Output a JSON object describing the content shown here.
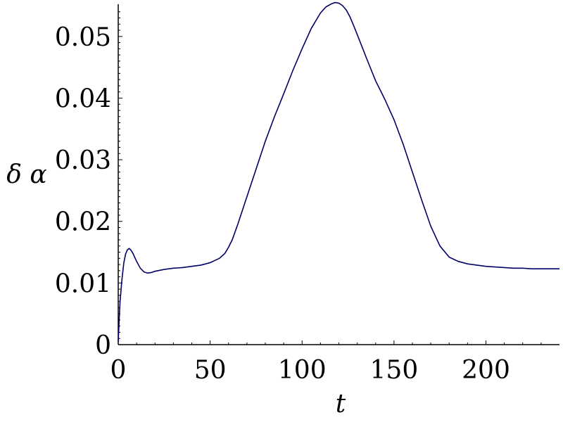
{
  "chart_data": {
    "type": "line",
    "title": "",
    "xlabel": "t",
    "ylabel": "δ α",
    "xlim": [
      0,
      240
    ],
    "ylim": [
      0,
      0.055
    ],
    "grid": false,
    "xticks": [
      0,
      50,
      100,
      150,
      200
    ],
    "xtick_labels": [
      "0",
      "50",
      "100",
      "150",
      "200"
    ],
    "yticks": [
      0,
      0.01,
      0.02,
      0.03,
      0.04,
      0.05
    ],
    "ytick_labels": [
      "0",
      "0.01",
      "0.02",
      "0.03",
      "0.04",
      "0.05"
    ],
    "line_color": "#000066",
    "series": [
      {
        "x": [
          0,
          0.5,
          1,
          2,
          3,
          4,
          5,
          6,
          7,
          8,
          10,
          12,
          14,
          16,
          18,
          20,
          25,
          30,
          35,
          40,
          45,
          50,
          55,
          58,
          60,
          62,
          65,
          70,
          75,
          80,
          85,
          90,
          95,
          100,
          105,
          110,
          113,
          116,
          118,
          120,
          122,
          124,
          126,
          128,
          130,
          135,
          140,
          145,
          150,
          155,
          160,
          165,
          170,
          175,
          180,
          185,
          190,
          195,
          200,
          205,
          210,
          215,
          220,
          225,
          230,
          235,
          240
        ],
        "y": [
          0.0005,
          0.004,
          0.007,
          0.0105,
          0.0132,
          0.0147,
          0.0154,
          0.0156,
          0.0153,
          0.0148,
          0.0135,
          0.0124,
          0.0118,
          0.0116,
          0.0117,
          0.0119,
          0.0122,
          0.0124,
          0.0125,
          0.0127,
          0.0129,
          0.0133,
          0.014,
          0.0148,
          0.0158,
          0.017,
          0.0195,
          0.024,
          0.0285,
          0.033,
          0.037,
          0.0407,
          0.0445,
          0.048,
          0.0513,
          0.0538,
          0.0548,
          0.0553,
          0.0555,
          0.0554,
          0.055,
          0.0543,
          0.0532,
          0.0518,
          0.0503,
          0.0465,
          0.0428,
          0.0398,
          0.0365,
          0.0325,
          0.028,
          0.0235,
          0.0192,
          0.016,
          0.0142,
          0.0135,
          0.0131,
          0.0129,
          0.0127,
          0.0126,
          0.0125,
          0.0124,
          0.0124,
          0.0123,
          0.0123,
          0.0123,
          0.0123
        ]
      }
    ]
  }
}
